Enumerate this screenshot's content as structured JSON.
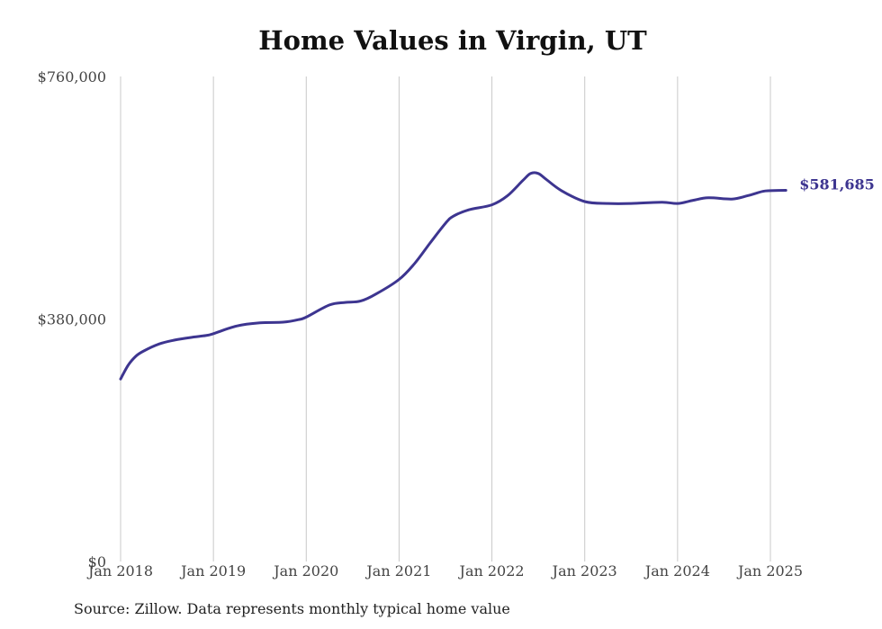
{
  "chart_data": {
    "type": "line",
    "title": "Home Values in Virgin, UT",
    "source": "Source: Zillow. Data represents monthly typical home value",
    "ylim": [
      0,
      760000
    ],
    "y_ticks": [
      {
        "value": 0,
        "label": "$0"
      },
      {
        "value": 380000,
        "label": "$380,000"
      },
      {
        "value": 760000,
        "label": "$760,000"
      }
    ],
    "x_ticks": [
      {
        "value": 2018,
        "label": "Jan 2018"
      },
      {
        "value": 2019,
        "label": "Jan 2019"
      },
      {
        "value": 2020,
        "label": "Jan 2020"
      },
      {
        "value": 2021,
        "label": "Jan 2021"
      },
      {
        "value": 2022,
        "label": "Jan 2022"
      },
      {
        "value": 2023,
        "label": "Jan 2023"
      },
      {
        "value": 2024,
        "label": "Jan 2024"
      },
      {
        "value": 2025,
        "label": "Jan 2025"
      }
    ],
    "xlim": [
      2018,
      2025
    ],
    "grid": "vertical",
    "line_color": "#3d3590",
    "end_label": "$581,685",
    "series": [
      {
        "x": [
          2018.0,
          2018.083,
          2018.167,
          2018.25,
          2018.417,
          2018.583,
          2018.75,
          2018.917,
          2019.0,
          2019.25,
          2019.5,
          2019.75,
          2019.917,
          2020.0,
          2020.25,
          2020.417,
          2020.583,
          2020.75,
          2021.0,
          2021.167,
          2021.333,
          2021.5,
          2021.583,
          2021.75,
          2022.0,
          2022.167,
          2022.333,
          2022.417,
          2022.5,
          2022.583,
          2022.75,
          2023.0,
          2023.25,
          2023.5,
          2023.833,
          2024.0,
          2024.167,
          2024.333,
          2024.583,
          2024.75,
          2024.917,
          2025.0,
          2025.167
        ],
        "values": [
          286000,
          308000,
          322000,
          330000,
          341000,
          347000,
          351000,
          354000,
          357000,
          369000,
          374000,
          375000,
          379000,
          383000,
          402000,
          406000,
          408000,
          419000,
          442000,
          467000,
          499000,
          530000,
          541000,
          551000,
          559000,
          573000,
          597000,
          608000,
          608000,
          599000,
          581000,
          564000,
          561000,
          561000,
          563000,
          561000,
          566000,
          570000,
          568000,
          573000,
          580000,
          581000,
          581685
        ]
      }
    ]
  }
}
